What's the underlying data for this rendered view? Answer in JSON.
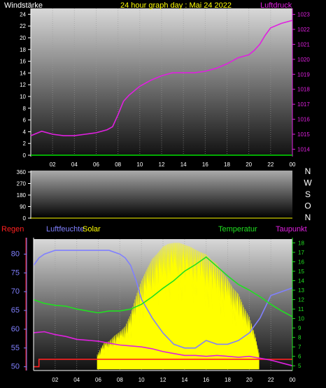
{
  "colors": {
    "background": "#000000",
    "wind": "#00e000",
    "pressure": "#e020e0",
    "humidity": "#8080ff",
    "solar": "#ffff00",
    "temperature": "#20e020",
    "dewpoint": "#e020e0",
    "rain": "#ff2020"
  },
  "chart_data": [
    {
      "type": "line",
      "title": "24 hour graph day : Mai 24 2022",
      "left_label": "Windstärke",
      "right_label": "Luftdruck",
      "x_ticks": [
        "02",
        "04",
        "06",
        "08",
        "10",
        "12",
        "14",
        "16",
        "18",
        "20",
        "22",
        "00"
      ],
      "x_range_hours": [
        0,
        24
      ],
      "y_left_ticks": [
        "0",
        "2",
        "4",
        "6",
        "8",
        "10",
        "12",
        "14",
        "16",
        "18",
        "20",
        "22",
        "24"
      ],
      "y_left_range": [
        0,
        25
      ],
      "y_right_ticks": [
        "1014",
        "1015",
        "1016",
        "1017",
        "1018",
        "1019",
        "1020",
        "1021",
        "1022",
        "1023"
      ],
      "y_right_range": [
        1013.6,
        1023.4
      ],
      "series": [
        {
          "name": "Windstärke",
          "x": [
            0,
            24
          ],
          "values": [
            0,
            0
          ],
          "axis": "left"
        },
        {
          "name": "Luftdruck",
          "axis": "right",
          "x": [
            0,
            1,
            2,
            3,
            4,
            5,
            6,
            7,
            7.5,
            8,
            8.5,
            9,
            10,
            11,
            12,
            13,
            14,
            15,
            16,
            17,
            18,
            19,
            20,
            20.5,
            21,
            21.5,
            22,
            23,
            24
          ],
          "values": [
            1014.9,
            1015.2,
            1015.0,
            1014.9,
            1014.9,
            1015.0,
            1015.1,
            1015.3,
            1015.5,
            1016.3,
            1017.2,
            1017.6,
            1018.2,
            1018.6,
            1018.9,
            1019.1,
            1019.1,
            1019.1,
            1019.2,
            1019.4,
            1019.7,
            1020.1,
            1020.3,
            1020.6,
            1021.0,
            1021.6,
            1022.1,
            1022.4,
            1022.6
          ]
        }
      ]
    },
    {
      "type": "line",
      "y_left_ticks": [
        "0",
        "90",
        "180",
        "270",
        "360"
      ],
      "y_left_range": [
        0,
        360
      ],
      "direction_labels": [
        "N",
        "W",
        "S",
        "O",
        "N"
      ],
      "series": []
    },
    {
      "type": "line",
      "legend": [
        "Regen",
        "Luftfeuchte",
        "Solar",
        "Temperatur",
        "Taupunkt"
      ],
      "x_ticks": [
        "02",
        "04",
        "06",
        "08",
        "10",
        "12",
        "14",
        "16",
        "18",
        "20",
        "22",
        "00"
      ],
      "x_range_hours": [
        0,
        24
      ],
      "y_left_ticks": [
        "50",
        "55",
        "60",
        "65",
        "70",
        "75",
        "80"
      ],
      "y_left_range": [
        49,
        84
      ],
      "y_right_ticks": [
        "5",
        "6",
        "7",
        "8",
        "9",
        "10",
        "11",
        "12",
        "13",
        "14",
        "15",
        "16",
        "17",
        "18"
      ],
      "y_right_range": [
        4.5,
        18.4
      ],
      "series": [
        {
          "name": "Luftfeuchte",
          "axis": "left",
          "x": [
            0,
            0.5,
            1,
            2,
            3,
            4,
            5,
            6,
            7,
            8,
            8.5,
            9,
            9.5,
            10,
            11,
            12,
            13,
            14,
            15,
            16,
            17,
            18,
            19,
            20,
            21,
            22,
            23,
            24
          ],
          "values": [
            77,
            79,
            80,
            81,
            81,
            81,
            81,
            81,
            81,
            80,
            79,
            77,
            73,
            68,
            63,
            59,
            56,
            55,
            55,
            57,
            56,
            56,
            57,
            59,
            63,
            69,
            70,
            71
          ]
        },
        {
          "name": "Temperatur",
          "axis": "right",
          "x": [
            0,
            1,
            2,
            3,
            4,
            5,
            6,
            7,
            8,
            9,
            10,
            11,
            12,
            13,
            14,
            15,
            16,
            17,
            18,
            19,
            20,
            21,
            22,
            23,
            24
          ],
          "values": [
            12.0,
            11.6,
            11.4,
            11.3,
            11.0,
            10.8,
            10.6,
            10.8,
            10.8,
            11.0,
            11.5,
            12.3,
            13.2,
            14.0,
            15.0,
            15.7,
            16.5,
            15.5,
            14.5,
            13.6,
            13.0,
            12.3,
            11.5,
            10.8,
            10.2
          ]
        },
        {
          "name": "Taupunkt",
          "axis": "right",
          "x": [
            0,
            1,
            2,
            3,
            4,
            5,
            6,
            7,
            8,
            9,
            10,
            11,
            12,
            13,
            14,
            15,
            16,
            17,
            18,
            19,
            20,
            21,
            22,
            23,
            24
          ],
          "values": [
            8.5,
            8.6,
            8.3,
            8.1,
            7.8,
            7.7,
            7.6,
            7.4,
            7.2,
            7.1,
            7.0,
            6.8,
            6.5,
            6.3,
            6.1,
            6.1,
            6.0,
            6.1,
            6.0,
            5.9,
            6.0,
            5.8,
            5.6,
            5.3,
            5.0
          ]
        },
        {
          "name": "Solar",
          "axis": "right",
          "x": [
            5.9,
            6.5,
            7,
            7.5,
            8,
            8.5,
            9,
            9.5,
            10,
            10.5,
            11,
            11.5,
            12,
            12.5,
            13,
            13.5,
            14,
            14.5,
            15,
            15.5,
            16,
            16.5,
            17,
            17.5,
            18,
            18.5,
            19,
            19.5,
            20,
            20.5,
            20.9
          ],
          "values": [
            6.2,
            7.4,
            7.6,
            8.2,
            8.6,
            9.2,
            10.5,
            12.4,
            14.0,
            15.2,
            16.3,
            16.9,
            17.6,
            17.9,
            18.0,
            18.0,
            17.8,
            17.6,
            17.3,
            17.0,
            16.8,
            16.2,
            15.8,
            14.9,
            14.2,
            13.2,
            12.6,
            11.2,
            10.2,
            8.4,
            6.4
          ]
        },
        {
          "name": "Regen",
          "axis": "left",
          "x": [
            0,
            0.5,
            0.5,
            24
          ],
          "values": [
            50,
            50,
            52,
            52
          ]
        }
      ]
    }
  ]
}
